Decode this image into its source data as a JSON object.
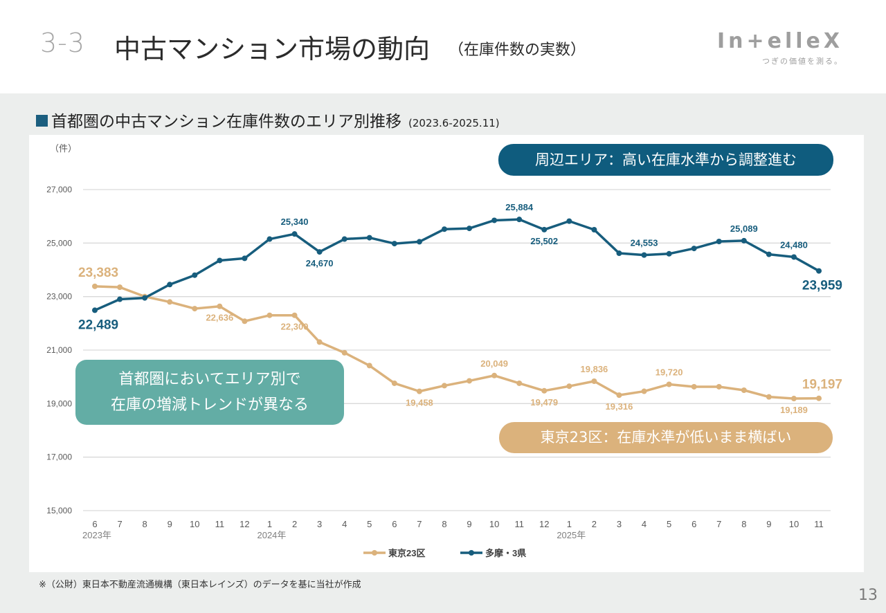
{
  "header": {
    "section_number": "3-3",
    "title": "中古マンション市場の動向",
    "title_suffix": "（在庫件数の実数）",
    "logo_word": "In+elleX",
    "logo_tagline": "つぎの価値を測る。"
  },
  "subtitle": {
    "text": "首都圏の中古マンション在庫件数のエリア別推移",
    "range": "(2023.6-2025.11)"
  },
  "callouts": {
    "blue": "周辺エリア：高い在庫水準から調整進む",
    "gold": "東京23区：在庫水準が低いまま横ばい",
    "teal_line1": "首都圏においてエリア別で",
    "teal_line2": "在庫の増減トレンドが異なる"
  },
  "colors": {
    "tokyo23": "#dbb27c",
    "tama3": "#175d7d",
    "teal_callout": "#63ada5",
    "blue_callout": "#0f5c7e",
    "gridline": "#d9d9d9"
  },
  "footnote": "※（公財）東日本不動産流通機構（東日本レインズ）のデータを基に当社が作成",
  "page_number": "13",
  "chart_data": {
    "type": "line",
    "title": "首都圏の中古マンション在庫件数のエリア別推移",
    "ylabel": "（件）",
    "xlabel": "",
    "ylim": [
      15000,
      27000
    ],
    "yticks": [
      15000,
      17000,
      19000,
      21000,
      23000,
      25000,
      27000
    ],
    "ytick_labels": [
      "15,000",
      "17,000",
      "19,000",
      "21,000",
      "23,000",
      "25,000",
      "27,000"
    ],
    "grid": true,
    "legend_position": "bottom-center",
    "categories": [
      "6",
      "7",
      "8",
      "9",
      "10",
      "11",
      "12",
      "1",
      "2",
      "3",
      "4",
      "5",
      "6",
      "7",
      "8",
      "9",
      "10",
      "11",
      "12",
      "1",
      "2",
      "3",
      "4",
      "5",
      "6",
      "7",
      "8",
      "9",
      "10",
      "11"
    ],
    "year_labels": [
      {
        "index": 0,
        "label": "2023年"
      },
      {
        "index": 7,
        "label": "2024年"
      },
      {
        "index": 19,
        "label": "2025年"
      }
    ],
    "series": [
      {
        "name": "東京23区",
        "color": "#dbb27c",
        "values": [
          23383,
          23350,
          23000,
          22800,
          22550,
          22636,
          22080,
          22300,
          22300,
          21300,
          20900,
          20420,
          19760,
          19458,
          19670,
          19850,
          20049,
          19760,
          19479,
          19650,
          19836,
          19316,
          19460,
          19720,
          19630,
          19630,
          19500,
          19250,
          19189,
          19197
        ],
        "labels": [
          {
            "index": 0,
            "text": "23,383",
            "size": "large",
            "pos": "above"
          },
          {
            "index": 5,
            "text": "22,636",
            "size": "small",
            "pos": "below"
          },
          {
            "index": 8,
            "text": "22,300",
            "size": "small",
            "pos": "below"
          },
          {
            "index": 13,
            "text": "19,458",
            "size": "small",
            "pos": "below"
          },
          {
            "index": 16,
            "text": "20,049",
            "size": "small",
            "pos": "above"
          },
          {
            "index": 18,
            "text": "19,479",
            "size": "small",
            "pos": "below"
          },
          {
            "index": 20,
            "text": "19,836",
            "size": "small",
            "pos": "above"
          },
          {
            "index": 21,
            "text": "19,316",
            "size": "small",
            "pos": "below"
          },
          {
            "index": 23,
            "text": "19,720",
            "size": "small",
            "pos": "above"
          },
          {
            "index": 28,
            "text": "19,189",
            "size": "small",
            "pos": "below"
          },
          {
            "index": 29,
            "text": "19,197",
            "size": "large",
            "pos": "above"
          }
        ]
      },
      {
        "name": "多摩・3県",
        "color": "#175d7d",
        "values": [
          22489,
          22900,
          22950,
          23450,
          23800,
          24350,
          24430,
          25150,
          25340,
          24670,
          25150,
          25200,
          24980,
          25050,
          25520,
          25550,
          25850,
          25884,
          25502,
          25820,
          25500,
          24620,
          24553,
          24600,
          24800,
          25060,
          25089,
          24580,
          24480,
          23959
        ],
        "labels": [
          {
            "index": 0,
            "text": "22,489",
            "size": "large",
            "pos": "below"
          },
          {
            "index": 8,
            "text": "25,340",
            "size": "small",
            "pos": "above"
          },
          {
            "index": 9,
            "text": "24,670",
            "size": "small",
            "pos": "below"
          },
          {
            "index": 17,
            "text": "25,884",
            "size": "small",
            "pos": "above"
          },
          {
            "index": 18,
            "text": "25,502",
            "size": "small",
            "pos": "below"
          },
          {
            "index": 22,
            "text": "24,553",
            "size": "small",
            "pos": "above"
          },
          {
            "index": 26,
            "text": "25,089",
            "size": "small",
            "pos": "above"
          },
          {
            "index": 28,
            "text": "24,480",
            "size": "small",
            "pos": "above"
          },
          {
            "index": 29,
            "text": "23,959",
            "size": "large",
            "pos": "below"
          }
        ]
      }
    ]
  }
}
